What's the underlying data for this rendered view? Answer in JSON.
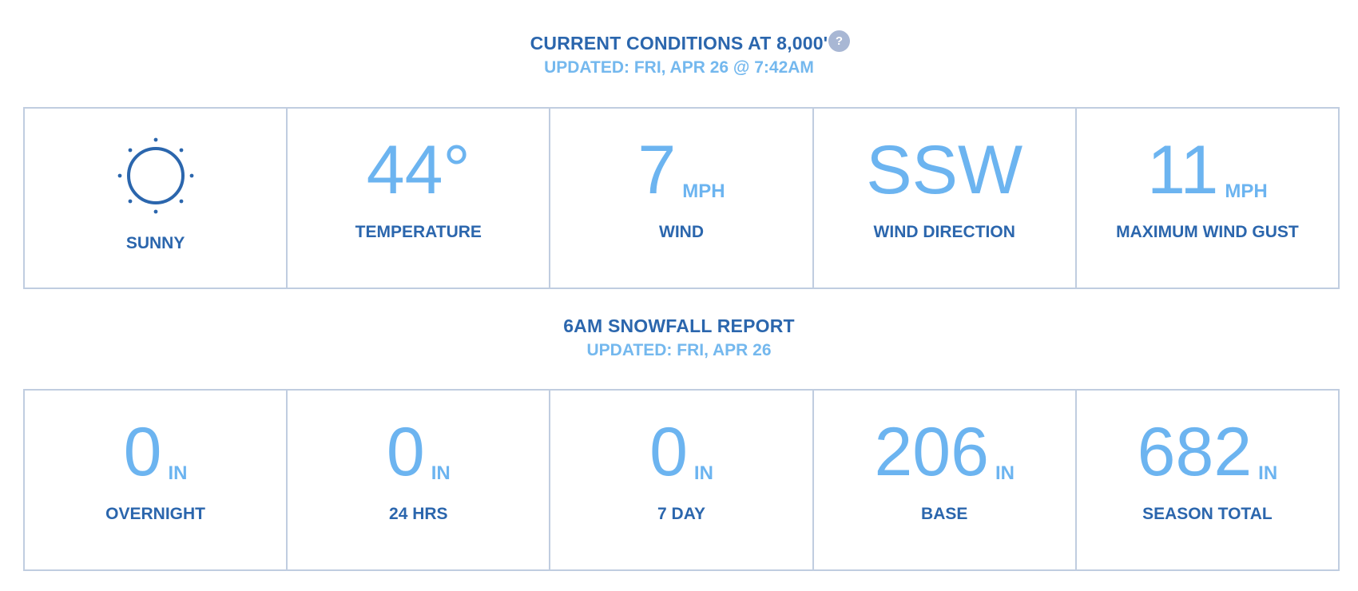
{
  "conditions": {
    "title": "CURRENT CONDITIONS AT 8,000'",
    "help_icon_glyph": "?",
    "updated": "UPDATED: FRI, APR 26 @ 7:42AM",
    "cells": [
      {
        "icon": "sun-icon",
        "label": "SUNNY"
      },
      {
        "value": "44°",
        "unit": "",
        "label": "TEMPERATURE"
      },
      {
        "value": "7",
        "unit": "MPH",
        "label": "WIND"
      },
      {
        "value": "SSW",
        "unit": "",
        "label": "WIND DIRECTION"
      },
      {
        "value": "11",
        "unit": "MPH",
        "label": "MAXIMUM WIND GUST"
      }
    ]
  },
  "snowfall": {
    "title": "6AM SNOWFALL REPORT",
    "updated": "UPDATED: FRI, APR 26",
    "cells": [
      {
        "value": "0",
        "unit": "IN",
        "label": "OVERNIGHT"
      },
      {
        "value": "0",
        "unit": "IN",
        "label": "24 HRS"
      },
      {
        "value": "0",
        "unit": "IN",
        "label": "7 DAY"
      },
      {
        "value": "206",
        "unit": "IN",
        "label": "BASE"
      },
      {
        "value": "682",
        "unit": "IN",
        "label": "SEASON TOTAL"
      }
    ]
  },
  "colors": {
    "heading": "#2b66ad",
    "subheading": "#74b8ee",
    "value": "#6cb4f0",
    "border": "#c0cde0",
    "help_icon_bg": "#a8b7d4"
  }
}
